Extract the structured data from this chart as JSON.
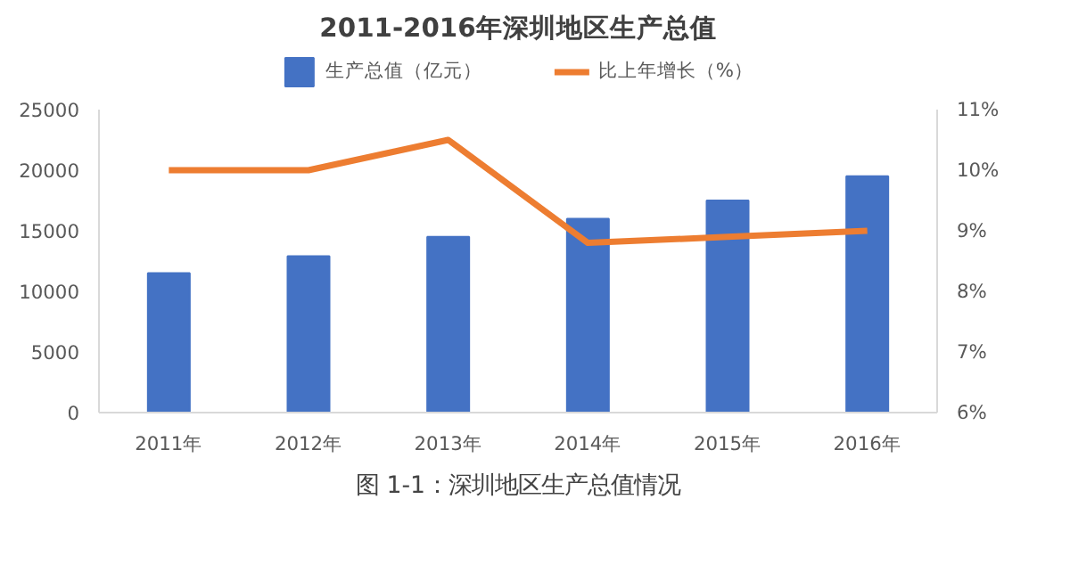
{
  "chart_data": {
    "type": "bar",
    "title": "2011-2016年深圳地区生产总值",
    "categories": [
      "2011年",
      "2012年",
      "2013年",
      "2014年",
      "2015年",
      "2016年"
    ],
    "series": [
      {
        "name": "生产总值（亿元）",
        "color": "#4472c4",
        "values": [
          11500,
          12900,
          14500,
          16000,
          17500,
          19500
        ]
      },
      {
        "name": "比上年增长（%）",
        "color": "#ed7d31",
        "type": "line",
        "axis": "y2",
        "values": [
          10.0,
          10.0,
          10.5,
          8.8,
          8.9,
          9.0
        ]
      }
    ],
    "ylim": [
      0,
      25000
    ],
    "yticks": [
      0,
      5000,
      10000,
      15000,
      20000,
      25000
    ],
    "y2lim": [
      6,
      11
    ],
    "y2ticks": [
      {
        "value": 6,
        "label": "6%"
      },
      {
        "value": 7,
        "label": "7%"
      },
      {
        "value": 8,
        "label": "8%"
      },
      {
        "value": 9,
        "label": "9%"
      },
      {
        "value": 10,
        "label": "10%"
      },
      {
        "value": 11,
        "label": "11%"
      }
    ],
    "legend": "top",
    "grid": false,
    "annotations": [
      "图 1-1：深圳地区生产总值情况"
    ]
  }
}
